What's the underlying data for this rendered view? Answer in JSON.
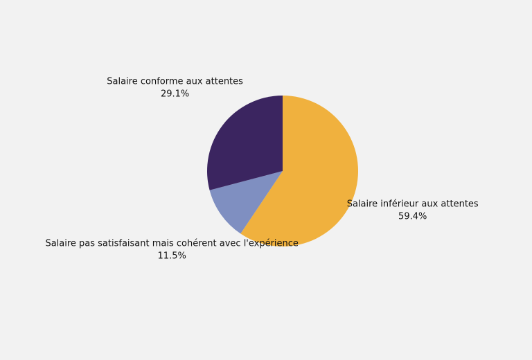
{
  "chart_data": {
    "type": "pie",
    "categories": [
      "Salaire inférieur aux attentes",
      "Salaire pas satisfaisant mais cohérent avec l'expérience",
      "Salaire conforme aux attentes"
    ],
    "values": [
      59.4,
      11.5,
      29.1
    ],
    "value_labels": [
      "59.4%",
      "11.5%",
      "29.1%"
    ],
    "colors": [
      "#f0b13e",
      "#7f8fc1",
      "#3b2560"
    ]
  }
}
